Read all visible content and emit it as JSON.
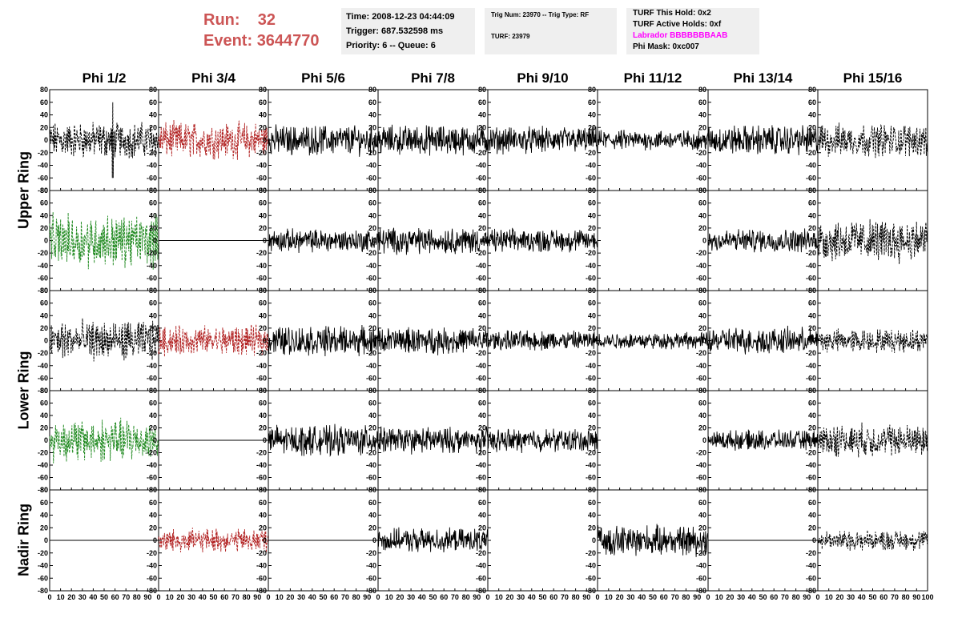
{
  "header": {
    "run_label": "Run:",
    "run_value": "32",
    "event_label": "Event:",
    "event_value": "3644770"
  },
  "info_box_1": {
    "time": "Time: 2008-12-23 04:44:09",
    "trigger": "Trigger: 687.532598 ms",
    "priority": "Priority: 6 -- Queue: 6"
  },
  "info_box_2": {
    "trig": "Trig Num: 23970 -- Trig Type: RF",
    "turf": "TURF: 23979"
  },
  "info_box_3": {
    "hold": "TURF This Hold: 0x2",
    "active": "TURF Active Holds: 0xf",
    "labrador": "Labrador BBBBBBBAAB",
    "phimask": "Phi Mask: 0xc007",
    "labrador_color": "#ff00ff"
  },
  "phi_labels": [
    "Phi 1/2",
    "Phi 3/4",
    "Phi 5/6",
    "Phi 7/8",
    "Phi 9/10",
    "Phi 11/12",
    "Phi 13/14",
    "Phi 15/16"
  ],
  "ring_labels": [
    "Upper Ring",
    "Lower Ring",
    "Nadir Ring"
  ],
  "chart_data": {
    "type": "line",
    "title": "",
    "xlim": [
      0,
      100
    ],
    "ylim": [
      -80,
      80
    ],
    "x_ticks": [
      "0",
      "10",
      "20",
      "30",
      "40",
      "50",
      "60",
      "70",
      "80",
      "90",
      "100"
    ],
    "y_ticks": [
      "80",
      "60",
      "40",
      "20",
      "0",
      "-20",
      "-40",
      "-60",
      "-80"
    ],
    "colors": {
      "black": "#000000",
      "red": "#b22222",
      "green": "#228b22"
    },
    "rows": [
      {
        "ring": "Upper Ring",
        "panels": [
          {
            "style": "dashed",
            "color": "black",
            "amp": 22,
            "spike": 60
          },
          {
            "style": "dashed",
            "color": "red",
            "amp": 22
          },
          {
            "style": "solid",
            "color": "black",
            "amp": 18
          },
          {
            "style": "solid",
            "color": "black",
            "amp": 18
          },
          {
            "style": "solid",
            "color": "black",
            "amp": 16
          },
          {
            "style": "solid",
            "color": "black",
            "amp": 12
          },
          {
            "style": "solid",
            "color": "black",
            "amp": 18
          },
          {
            "style": "dashed",
            "color": "black",
            "amp": 20
          }
        ]
      },
      {
        "ring": "Upper Ring",
        "panels": [
          {
            "style": "dashed",
            "color": "green",
            "amp": 32
          },
          {
            "style": "flat",
            "color": "black",
            "amp": 0
          },
          {
            "style": "solid",
            "color": "black",
            "amp": 14
          },
          {
            "style": "solid",
            "color": "black",
            "amp": 16
          },
          {
            "style": "solid",
            "color": "black",
            "amp": 14
          },
          {
            "style": "none",
            "color": "black",
            "amp": 0
          },
          {
            "style": "solid",
            "color": "black",
            "amp": 14
          },
          {
            "style": "dashed",
            "color": "black",
            "amp": 26
          }
        ]
      },
      {
        "ring": "Lower Ring",
        "panels": [
          {
            "style": "dashed",
            "color": "black",
            "amp": 24
          },
          {
            "style": "dashed",
            "color": "red",
            "amp": 18
          },
          {
            "style": "solid",
            "color": "black",
            "amp": 18
          },
          {
            "style": "solid",
            "color": "black",
            "amp": 16
          },
          {
            "style": "solid",
            "color": "black",
            "amp": 12
          },
          {
            "style": "solid",
            "color": "black",
            "amp": 10
          },
          {
            "style": "solid",
            "color": "black",
            "amp": 16
          },
          {
            "style": "dashed",
            "color": "black",
            "amp": 14
          }
        ]
      },
      {
        "ring": "Lower Ring",
        "panels": [
          {
            "style": "dashed",
            "color": "green",
            "amp": 26
          },
          {
            "style": "flat",
            "color": "black",
            "amp": 0
          },
          {
            "style": "solid",
            "color": "black",
            "amp": 18
          },
          {
            "style": "solid",
            "color": "black",
            "amp": 16
          },
          {
            "style": "solid",
            "color": "black",
            "amp": 14
          },
          {
            "style": "none",
            "color": "black",
            "amp": 0
          },
          {
            "style": "solid",
            "color": "black",
            "amp": 12
          },
          {
            "style": "dashed",
            "color": "black",
            "amp": 20
          }
        ]
      },
      {
        "ring": "Nadir Ring",
        "panels": [
          {
            "style": "flat",
            "color": "black",
            "amp": 0
          },
          {
            "style": "dashed",
            "color": "red",
            "amp": 14
          },
          {
            "style": "flat",
            "color": "black",
            "amp": 0
          },
          {
            "style": "solid",
            "color": "black",
            "amp": 14
          },
          {
            "style": "none",
            "color": "black",
            "amp": 0
          },
          {
            "style": "solid",
            "color": "black",
            "amp": 18
          },
          {
            "style": "flat",
            "color": "black",
            "amp": 0
          },
          {
            "style": "dashed",
            "color": "black",
            "amp": 12
          }
        ]
      }
    ]
  }
}
